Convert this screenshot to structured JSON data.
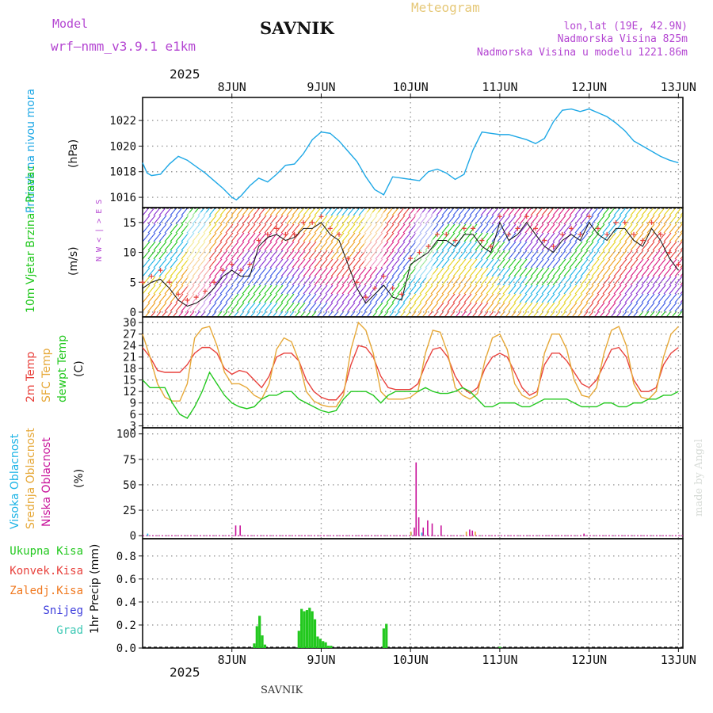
{
  "header": {
    "model_label": "Model",
    "model_name": "wrf—nmm_v3.9.1  e1km",
    "station": "SAVNIK",
    "title": "Meteogram",
    "lonlat": "lon,lat (19E, 42.9N)",
    "elevation": "Nadmorska Visina 825m",
    "model_elevation": "Nadmorska Visina u modelu 1221.86m",
    "year_top": "2025",
    "year_bottom": "2025",
    "footer_station": "SAVNIK",
    "credit": "made by Angel"
  },
  "colors": {
    "pressure": "#1ea8e6",
    "t2m": "#e8413c",
    "tsfc": "#e6a838",
    "dewpoint": "#22c81e",
    "cloud_high": "#1eb4e6",
    "cloud_mid": "#e6a838",
    "cloud_low": "#c8149b",
    "precip_total": "#22c81e",
    "model_label": "#b446d2",
    "title": "#e6c878"
  },
  "chart_data": [
    {
      "type": "line",
      "name": "pressure",
      "ylabel_name": "Pritisak na nivou mora",
      "ylabel_unit": "(hPa)",
      "ylim": [
        1015.2,
        1023.8
      ],
      "yticks": [
        1016,
        1018,
        1020,
        1022
      ],
      "x_days": [
        0,
        0.05,
        0.1,
        0.2,
        0.3,
        0.4,
        0.5,
        0.6,
        0.7,
        0.8,
        0.9,
        1.0,
        1.05,
        1.1,
        1.2,
        1.3,
        1.4,
        1.5,
        1.6,
        1.7,
        1.8,
        1.9,
        2.0,
        2.1,
        2.2,
        2.3,
        2.4,
        2.5,
        2.6,
        2.7,
        2.8,
        2.9,
        3.0,
        3.1,
        3.2,
        3.3,
        3.4,
        3.5,
        3.6,
        3.7,
        3.8,
        3.9,
        4.0,
        4.1,
        4.2,
        4.3,
        4.4,
        4.5,
        4.6,
        4.7,
        4.8,
        4.9,
        5.0,
        5.1,
        5.2,
        5.3,
        5.4,
        5.5,
        5.6,
        5.7,
        5.8,
        5.9,
        6.0
      ],
      "values": [
        1018.7,
        1017.9,
        1017.7,
        1017.8,
        1018.6,
        1019.2,
        1018.9,
        1018.4,
        1017.9,
        1017.3,
        1016.7,
        1016.0,
        1015.8,
        1016.1,
        1016.9,
        1017.5,
        1017.2,
        1017.8,
        1018.5,
        1018.6,
        1019.4,
        1020.5,
        1021.1,
        1021.0,
        1020.4,
        1019.6,
        1018.8,
        1017.6,
        1016.6,
        1016.2,
        1017.6,
        1017.5,
        1017.4,
        1017.3,
        1018.0,
        1018.2,
        1017.9,
        1017.4,
        1017.8,
        1019.7,
        1021.1,
        1021.0,
        1020.9,
        1020.9,
        1020.7,
        1020.5,
        1020.2,
        1020.6,
        1021.9,
        1022.8,
        1022.9,
        1022.7,
        1022.9,
        1022.6,
        1022.3,
        1021.8,
        1021.2,
        1020.4,
        1020.0,
        1019.6,
        1019.2,
        1018.9,
        1018.7
      ]
    },
    {
      "type": "line",
      "name": "wind",
      "ylabel_name": "10m Vjetar Brzina i Pravac",
      "ylabel_unit": "(m/s)",
      "ylim": [
        -0.8,
        17.5
      ],
      "yticks": [
        0,
        5,
        10,
        15
      ],
      "compass": "N  W < | > E  S",
      "x_days": [
        0,
        0.1,
        0.2,
        0.3,
        0.4,
        0.5,
        0.6,
        0.7,
        0.8,
        0.9,
        1.0,
        1.1,
        1.2,
        1.3,
        1.4,
        1.5,
        1.6,
        1.7,
        1.8,
        1.9,
        2.0,
        2.1,
        2.2,
        2.3,
        2.4,
        2.5,
        2.6,
        2.7,
        2.8,
        2.9,
        3.0,
        3.1,
        3.2,
        3.3,
        3.4,
        3.5,
        3.6,
        3.7,
        3.8,
        3.9,
        4.0,
        4.1,
        4.2,
        4.3,
        4.4,
        4.5,
        4.6,
        4.7,
        4.8,
        4.9,
        5.0,
        5.1,
        5.2,
        5.3,
        5.4,
        5.5,
        5.6,
        5.7,
        5.8,
        5.9,
        6.0
      ],
      "values": [
        4,
        5,
        5.5,
        4,
        2,
        1,
        1.5,
        2.5,
        4,
        6,
        7,
        6,
        6,
        11,
        12.5,
        13,
        12,
        12.5,
        14,
        14,
        15,
        13,
        12,
        8,
        4,
        1.5,
        3,
        4.5,
        2.5,
        2,
        8,
        9,
        10,
        12,
        12,
        11,
        13,
        13,
        11,
        10,
        15,
        12,
        13,
        15,
        13,
        11,
        10,
        12,
        13,
        12,
        15,
        13,
        12,
        14,
        14,
        12,
        11,
        14,
        12,
        9,
        7
      ],
      "gust_values": [
        5,
        6,
        7,
        5,
        3,
        2,
        2.5,
        3.5,
        5,
        7,
        8,
        7,
        8,
        12,
        13,
        14,
        13,
        13,
        15,
        15,
        16,
        14,
        13,
        9,
        5,
        2.5,
        4,
        6,
        4,
        3,
        9,
        10,
        11,
        13,
        13,
        12,
        14,
        14,
        12,
        11,
        16,
        13,
        14,
        16,
        14,
        12,
        11,
        13,
        14,
        13,
        16,
        14,
        13,
        15,
        15,
        13,
        12,
        15,
        13,
        10,
        8
      ]
    },
    {
      "type": "line",
      "name": "temperature",
      "ylabel_names": [
        "2m Temp",
        "SFC Temp",
        "dewpt Temp"
      ],
      "ylabel_unit": "(C)",
      "ylim": [
        2.5,
        31.5
      ],
      "yticks": [
        3,
        6,
        9,
        12,
        15,
        18,
        21,
        24,
        27,
        30
      ],
      "x_days": [
        0,
        0.083,
        0.167,
        0.25,
        0.333,
        0.417,
        0.5,
        0.583,
        0.667,
        0.75,
        0.833,
        0.917,
        1.0,
        1.083,
        1.167,
        1.25,
        1.333,
        1.417,
        1.5,
        1.583,
        1.667,
        1.75,
        1.833,
        1.917,
        2.0,
        2.083,
        2.167,
        2.25,
        2.333,
        2.417,
        2.5,
        2.583,
        2.667,
        2.75,
        2.833,
        2.917,
        3.0,
        3.083,
        3.167,
        3.25,
        3.333,
        3.417,
        3.5,
        3.583,
        3.667,
        3.75,
        3.833,
        3.917,
        4.0,
        4.083,
        4.167,
        4.25,
        4.333,
        4.417,
        4.5,
        4.583,
        4.667,
        4.75,
        4.833,
        4.917,
        5.0,
        5.083,
        5.167,
        5.25,
        5.333,
        5.417,
        5.5,
        5.583,
        5.667,
        5.75,
        5.833,
        5.917,
        6.0
      ],
      "series": [
        {
          "name": "2m Temp",
          "values": [
            23.5,
            21,
            17.5,
            17,
            17,
            17,
            19,
            22,
            23.5,
            23.5,
            22,
            18,
            16.5,
            17.5,
            17,
            15,
            13,
            16,
            21,
            22,
            22,
            20,
            15,
            12,
            10.5,
            9.8,
            9.8,
            12,
            19,
            24,
            23.5,
            21,
            16,
            13,
            12.5,
            12.5,
            12.5,
            14,
            19,
            23,
            23.5,
            21,
            16,
            13,
            11.5,
            13,
            18,
            21,
            22,
            21,
            17,
            13,
            11,
            12,
            19,
            22,
            22,
            20,
            17,
            14,
            13,
            15,
            19,
            23,
            23.5,
            21,
            15,
            12,
            12,
            13,
            19,
            22,
            23.5
          ]
        },
        {
          "name": "SFC Temp",
          "values": [
            27,
            21,
            14,
            10.5,
            9.5,
            9.5,
            14,
            26,
            28.5,
            29,
            24,
            17,
            14,
            14,
            13,
            11,
            10,
            14,
            23,
            26,
            25,
            20,
            12,
            9.5,
            8.5,
            8,
            8,
            11,
            23,
            30,
            28,
            22,
            12,
            10,
            10,
            10,
            10.5,
            12,
            22,
            28,
            27.5,
            22,
            13,
            11,
            10,
            11.5,
            20,
            26,
            27,
            23,
            14,
            11,
            10,
            11,
            22,
            27,
            27,
            23,
            15,
            11,
            10.5,
            13,
            22,
            28,
            29,
            24,
            14,
            10.5,
            10,
            12,
            21,
            27,
            29
          ]
        },
        {
          "name": "dewpt Temp",
          "values": [
            15,
            13,
            13,
            13,
            9,
            6,
            5,
            8,
            12,
            17,
            14,
            11,
            9,
            8,
            7.5,
            8,
            10,
            11,
            11,
            12,
            12,
            10,
            9,
            8,
            7,
            6.5,
            7,
            10,
            12,
            12,
            12,
            11,
            9,
            11,
            12,
            12,
            12,
            12,
            13,
            12,
            11.5,
            11.5,
            12,
            13,
            12,
            10,
            8,
            8,
            9,
            9,
            9,
            8,
            8,
            9,
            10,
            10,
            10,
            10,
            9,
            8,
            8,
            8,
            9,
            9,
            8,
            8,
            9,
            9,
            10,
            10,
            11,
            11,
            12
          ]
        }
      ]
    },
    {
      "type": "bar",
      "name": "cloud_cover",
      "ylabel_names": [
        "Visoka Oblacnost",
        "Srednja Oblacnost",
        "Niska Oblacnost"
      ],
      "ylabel_unit": "(%)",
      "ylim": [
        -3,
        106
      ],
      "yticks": [
        0,
        25,
        50,
        75,
        100
      ],
      "x_days": [
        0.05,
        1.0,
        1.05,
        2.98,
        3.0,
        3.02,
        3.05,
        3.1,
        3.12,
        3.15,
        3.2,
        3.3,
        3.5,
        3.6,
        3.62,
        3.65,
        3.7,
        3.8,
        3.9,
        4.0,
        4.1,
        4.9,
        5.0,
        5.02,
        5.05
      ],
      "series": [
        {
          "name": "Visoka Oblacnost",
          "values": [
            2,
            0,
            0,
            0,
            3,
            0,
            0,
            0,
            3,
            0,
            0,
            0,
            0,
            0,
            0,
            0,
            0,
            0,
            0,
            0,
            0,
            0,
            0,
            0,
            0
          ]
        },
        {
          "name": "Srednja Oblacnost",
          "values": [
            0,
            0,
            0,
            4,
            0,
            0,
            0,
            0,
            0,
            0,
            0,
            0,
            0,
            4,
            0,
            0,
            4,
            0,
            0,
            0,
            0,
            0,
            0,
            0,
            0
          ]
        },
        {
          "name": "Niska Oblacnost",
          "values": [
            0,
            10,
            10,
            0,
            8,
            72,
            18,
            8,
            0,
            15,
            12,
            10,
            0,
            0,
            6,
            5,
            0,
            0,
            0,
            0,
            0,
            2,
            0,
            0,
            0
          ]
        }
      ]
    },
    {
      "type": "bar",
      "name": "precipitation",
      "legend": [
        "Ukupna Kisa",
        "Konvek.Kisa",
        "Zaledj.Kisa",
        "Snijeg",
        "Grad"
      ],
      "ylabel_unit": "1hr Precip (mm)",
      "ylim": [
        0,
        0.95
      ],
      "yticks": [
        0,
        0.2,
        0.4,
        0.6,
        0.8
      ],
      "x_days": [
        1.25,
        1.28,
        1.31,
        1.34,
        1.37,
        1.75,
        1.78,
        1.81,
        1.84,
        1.87,
        1.9,
        1.93,
        1.96,
        1.99,
        2.02,
        2.05,
        2.08,
        2.11,
        2.7,
        2.73,
        4.0
      ],
      "values": [
        0.04,
        0.19,
        0.28,
        0.11,
        0.03,
        0.15,
        0.34,
        0.32,
        0.33,
        0.35,
        0.32,
        0.25,
        0.1,
        0.08,
        0.06,
        0.05,
        0.02,
        0.02,
        0.17,
        0.21,
        0.01
      ]
    }
  ],
  "xaxis": {
    "start_day_offset": 0,
    "day_labels": [
      "8JUN",
      "9JUN",
      "10JUN",
      "11JUN",
      "12JUN",
      "13JUN"
    ],
    "day_positions": [
      0.5,
      1.5,
      2.5,
      3.5,
      4.5,
      5.5
    ]
  }
}
